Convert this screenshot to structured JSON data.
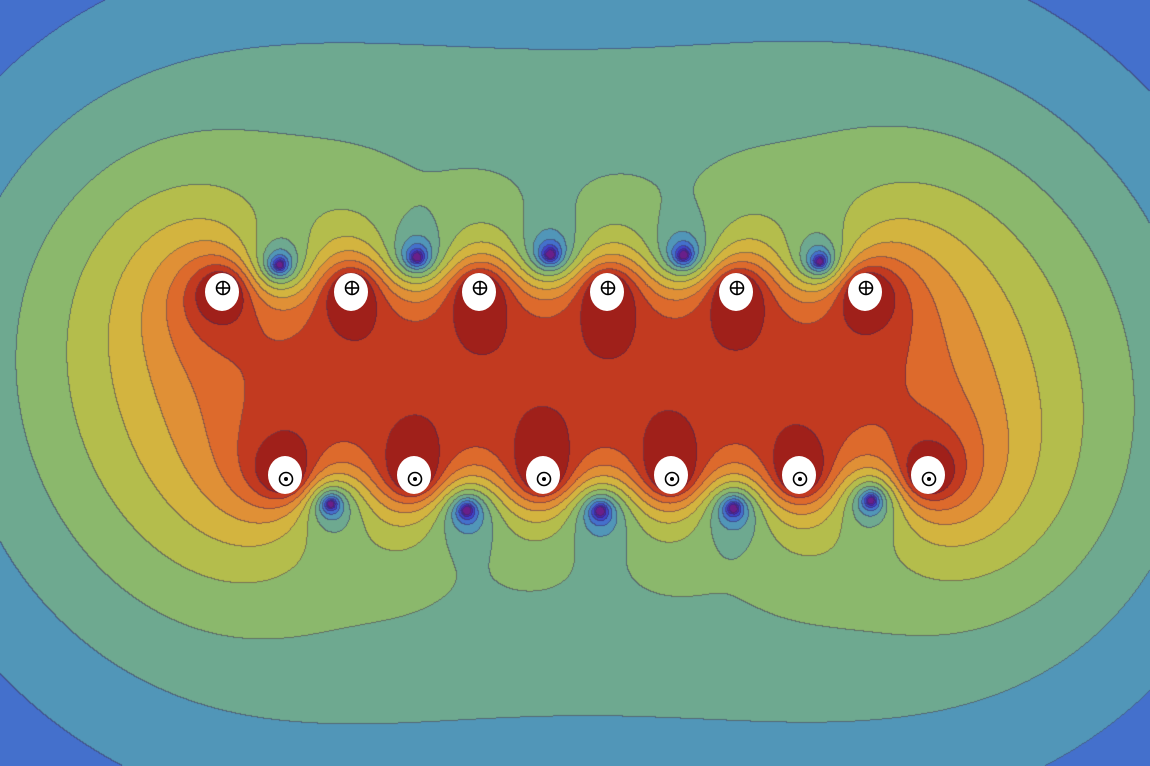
{
  "figure": {
    "conductor_rows": [
      {
        "direction": "into-page",
        "symbol_icon": "circle-plus-icon",
        "count": 6
      },
      {
        "direction": "out-of-page",
        "symbol_icon": "circle-dot-icon",
        "count": 6
      }
    ],
    "colormap": [
      "#6a1f8a",
      "#4a25b0",
      "#3f43c8",
      "#4470cc",
      "#5196b8",
      "#6ea990",
      "#8bb86c",
      "#b4bd4c",
      "#d3b43f",
      "#e09036",
      "#dd6a2c",
      "#c23a20",
      "#a0201a"
    ],
    "contour_line_color": "#3a2a5a"
  }
}
